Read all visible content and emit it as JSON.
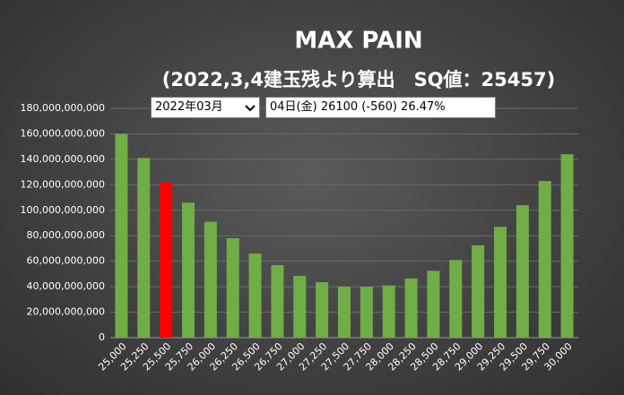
{
  "chart_data": {
    "type": "bar",
    "title": "MAX PAIN",
    "subtitle": "(2022,3,4建玉残より算出　SQ値：25457)",
    "categories": [
      "25,000",
      "25,250",
      "25,500",
      "25,750",
      "26,000",
      "26,250",
      "26,500",
      "26,750",
      "27,000",
      "27,250",
      "27,500",
      "27,750",
      "28,000",
      "28,250",
      "28,500",
      "28,750",
      "29,000",
      "29,250",
      "29,500",
      "29,750",
      "30,000"
    ],
    "values": [
      160000000000,
      141000000000,
      122000000000,
      106000000000,
      91000000000,
      78000000000,
      66000000000,
      57000000000,
      48500000000,
      43500000000,
      40000000000,
      40000000000,
      41000000000,
      46500000000,
      52500000000,
      61000000000,
      72500000000,
      87000000000,
      104000000000,
      123000000000,
      144000000000
    ],
    "colors": [
      "#70ad47",
      "#70ad47",
      "#ff0000",
      "#70ad47",
      "#70ad47",
      "#70ad47",
      "#70ad47",
      "#70ad47",
      "#70ad47",
      "#70ad47",
      "#70ad47",
      "#70ad47",
      "#70ad47",
      "#70ad47",
      "#70ad47",
      "#70ad47",
      "#70ad47",
      "#70ad47",
      "#70ad47",
      "#70ad47",
      "#70ad47"
    ],
    "ylim": [
      0,
      180000000000
    ],
    "yticks": [
      0,
      {
        "value": 20000000000,
        "label": "20,000,000,000"
      },
      {
        "value": 40000000000,
        "label": "40,000,000,000"
      },
      {
        "value": 60000000000,
        "label": "60,000,000,000"
      },
      {
        "value": 80000000000,
        "label": "80,000,000,000"
      },
      {
        "value": 100000000000,
        "label": "100,000,000,000"
      },
      {
        "value": 120000000000,
        "label": "120,000,000,000"
      },
      {
        "value": 140000000000,
        "label": "140,000,000,000"
      },
      {
        "value": 160000000000,
        "label": "160,000,000,000"
      },
      {
        "value": 180000000000,
        "label": "180,000,000,000"
      }
    ],
    "grid": true
  },
  "controls": {
    "month_select": "2022年03月",
    "info": "04日(金) 26100 (-560) 26.47%"
  }
}
